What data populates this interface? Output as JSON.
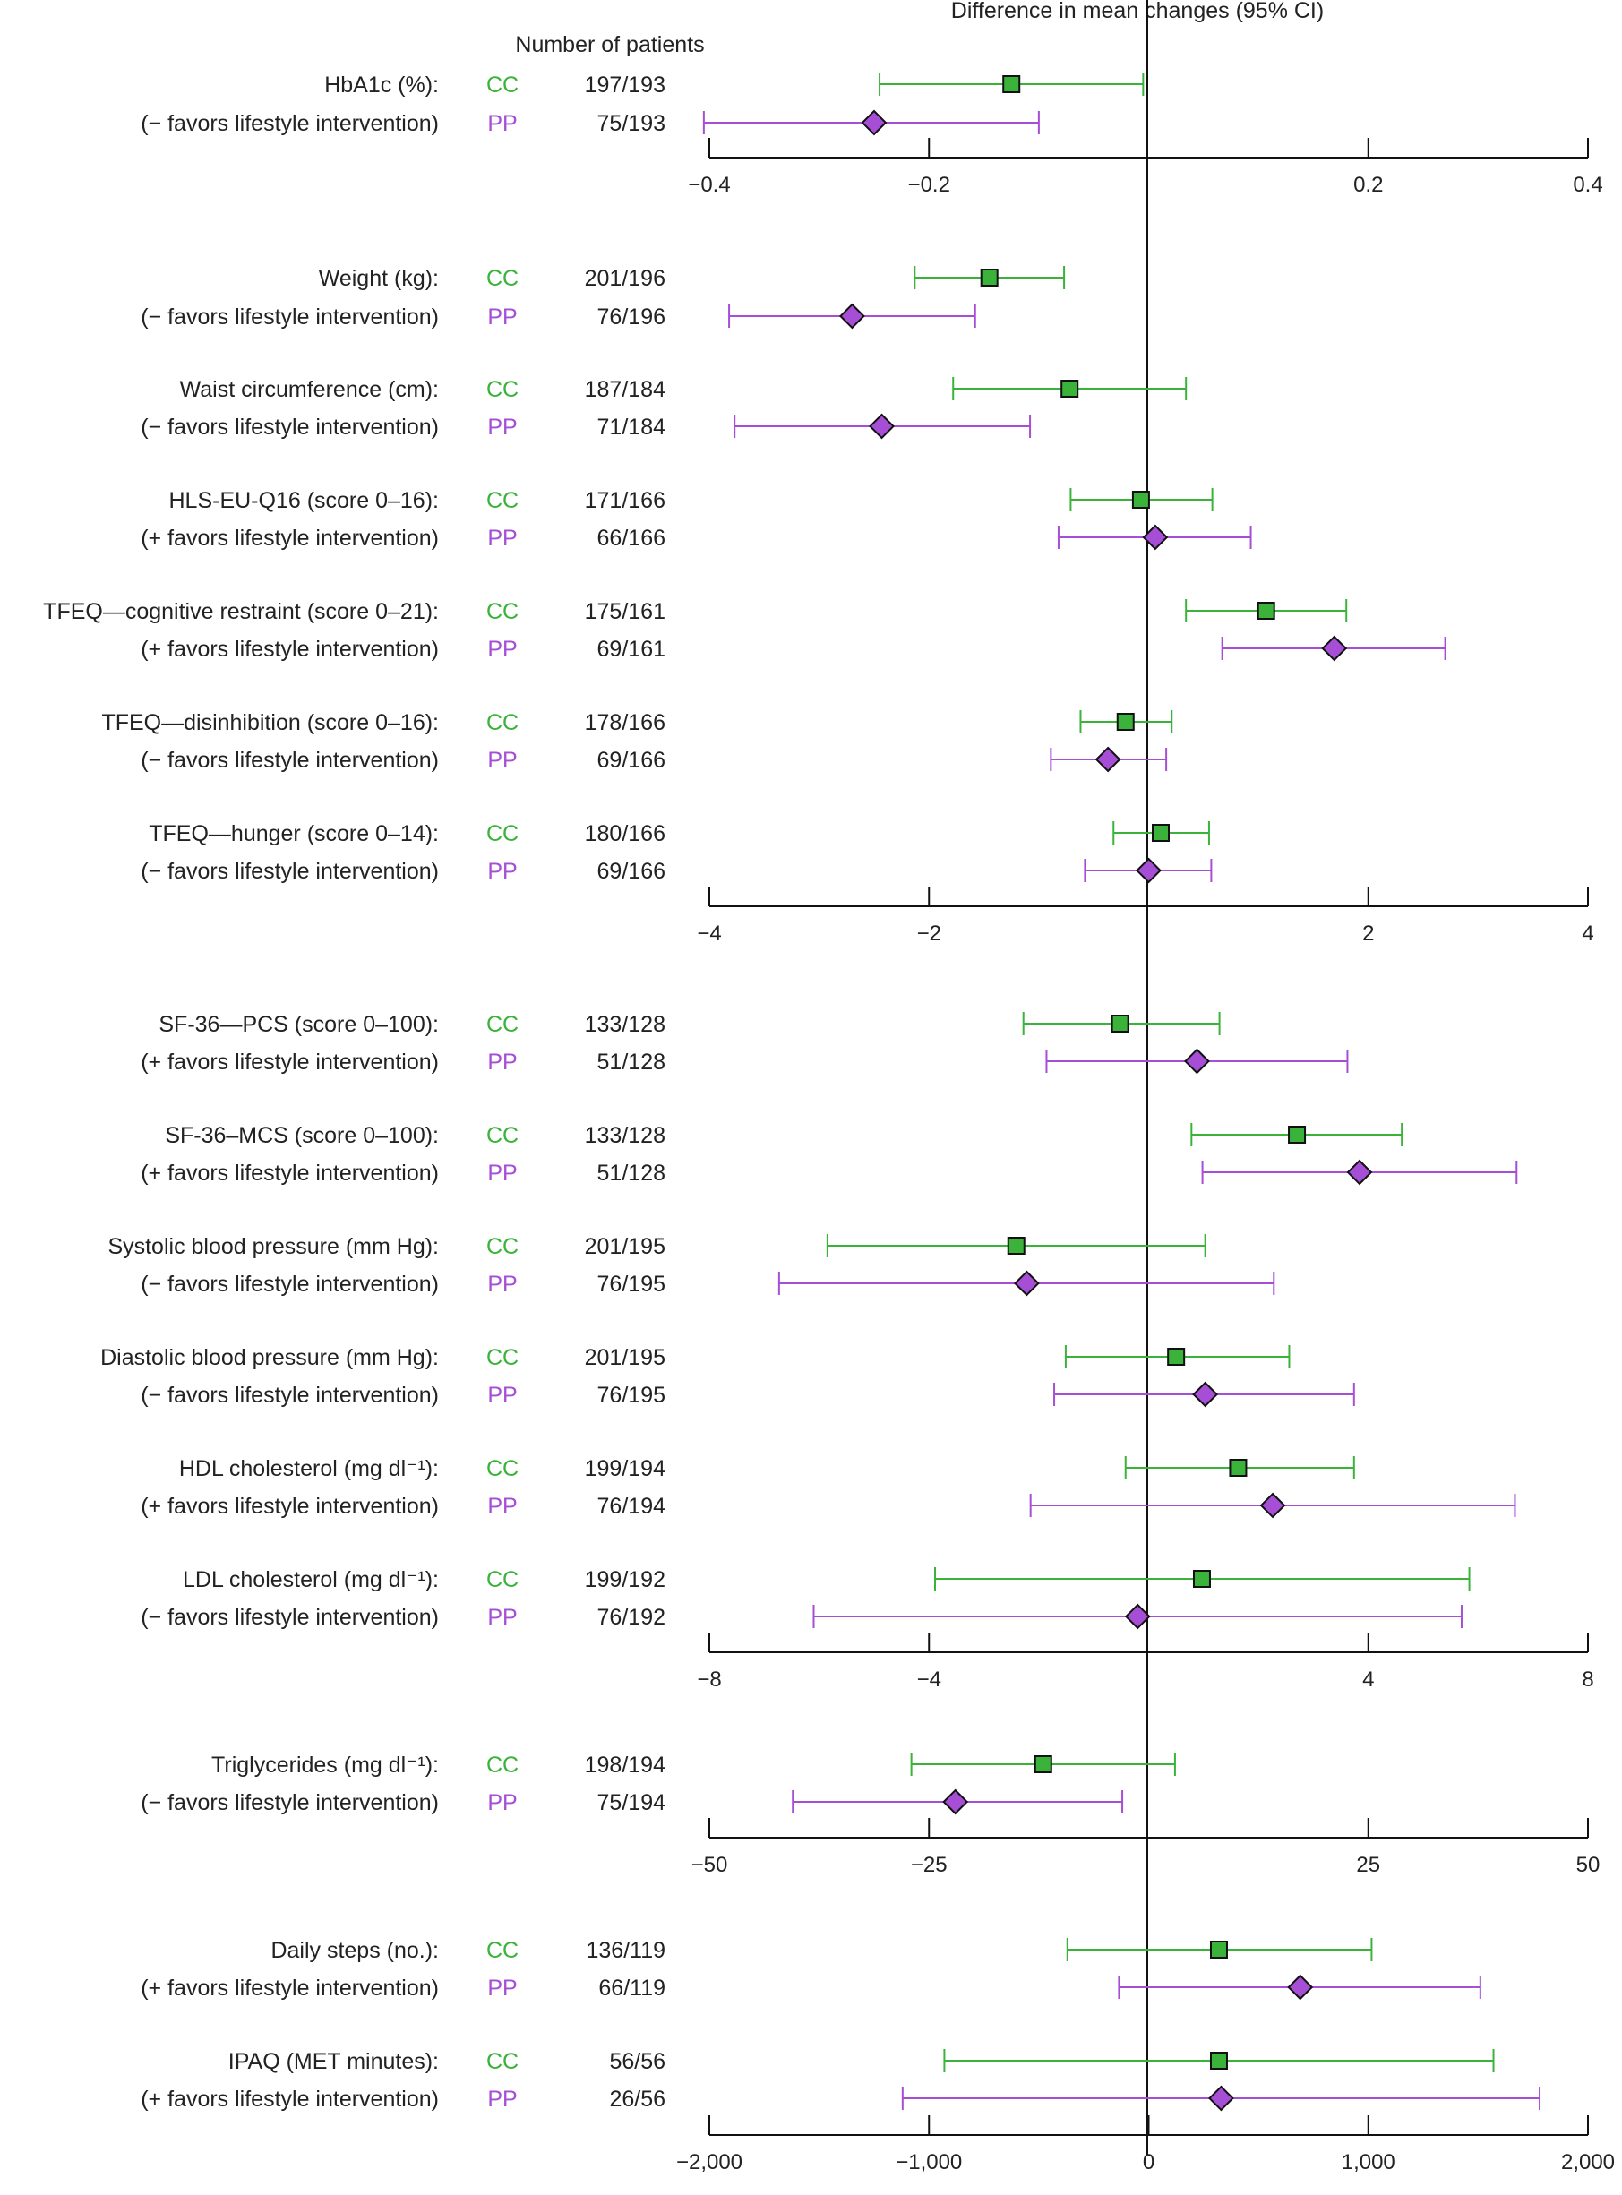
{
  "header": {
    "patients_label": "Number of patients",
    "effect_label": "Difference in mean changes (95% CI)"
  },
  "groups": {
    "cc": {
      "label": "CC",
      "color": "#3bb33b",
      "marker": "square"
    },
    "pp": {
      "label": "PP",
      "color": "#a64fd6",
      "marker": "diamond"
    }
  },
  "chart_data": [
    {
      "type": "forest",
      "xlim": [
        -0.4,
        0.4
      ],
      "ticks": [
        {
          "value": -0.4,
          "label": "−0.4"
        },
        {
          "value": -0.2,
          "label": "−0.2"
        },
        {
          "value": 0.2,
          "label": "0.2"
        },
        {
          "value": 0.4,
          "label": "0.4"
        }
      ],
      "rows": [
        {
          "label": "HbA1c (%):",
          "group": "cc",
          "n": "197/193",
          "estimate": -0.125,
          "lower": -0.245,
          "upper": -0.005
        },
        {
          "label": "(− favors lifestyle intervention)",
          "group": "pp",
          "n": "75/193",
          "estimate": -0.25,
          "lower": -0.405,
          "upper": -0.1
        }
      ]
    },
    {
      "type": "forest",
      "xlim": [
        -4,
        4
      ],
      "ticks": [
        {
          "value": -4,
          "label": "−4"
        },
        {
          "value": -2,
          "label": "−2"
        },
        {
          "value": 2,
          "label": "2"
        },
        {
          "value": 4,
          "label": "4"
        }
      ],
      "rows": [
        {
          "label": "Weight (kg):",
          "group": "cc",
          "n": "201/196",
          "estimate": -1.45,
          "lower": -2.13,
          "upper": -0.77
        },
        {
          "label": "(− favors lifestyle intervention)",
          "group": "pp",
          "n": "76/196",
          "estimate": -2.7,
          "lower": -3.82,
          "upper": -1.58
        },
        {
          "label": "Waist circumference (cm):",
          "group": "cc",
          "n": "187/184",
          "estimate": -0.72,
          "lower": -1.78,
          "upper": 0.34
        },
        {
          "label": "(− favors lifestyle intervention)",
          "group": "pp",
          "n": "71/184",
          "estimate": -2.43,
          "lower": -3.77,
          "upper": -1.08
        },
        {
          "label": "HLS-EU-Q16 (score 0–16):",
          "group": "cc",
          "n": "171/166",
          "estimate": -0.07,
          "lower": -0.71,
          "upper": 0.58
        },
        {
          "label": "(+ favors lifestyle intervention)",
          "group": "pp",
          "n": "66/166",
          "estimate": 0.06,
          "lower": -0.82,
          "upper": 0.93
        },
        {
          "label": "TFEQ—cognitive restraint (score 0–21):",
          "group": "cc",
          "n": "175/161",
          "estimate": 1.07,
          "lower": 0.34,
          "upper": 1.8
        },
        {
          "label": "(+ favors lifestyle intervention)",
          "group": "pp",
          "n": "69/161",
          "estimate": 1.69,
          "lower": 0.67,
          "upper": 2.7
        },
        {
          "label": "TFEQ—disinhibition (score 0–16):",
          "group": "cc",
          "n": "178/166",
          "estimate": -0.21,
          "lower": -0.62,
          "upper": 0.21
        },
        {
          "label": "(− favors lifestyle intervention)",
          "group": "pp",
          "n": "69/166",
          "estimate": -0.37,
          "lower": -0.89,
          "upper": 0.16
        },
        {
          "label": "TFEQ—hunger (score 0–14):",
          "group": "cc",
          "n": "180/166",
          "estimate": 0.11,
          "lower": -0.32,
          "upper": 0.55
        },
        {
          "label": "(− favors lifestyle intervention)",
          "group": "pp",
          "n": "69/166",
          "estimate": 0.0,
          "lower": -0.58,
          "upper": 0.57
        }
      ]
    },
    {
      "type": "forest",
      "xlim": [
        -8,
        8
      ],
      "ticks": [
        {
          "value": -8,
          "label": "−8"
        },
        {
          "value": -4,
          "label": "−4"
        },
        {
          "value": 4,
          "label": "4"
        },
        {
          "value": 8,
          "label": "8"
        }
      ],
      "rows": [
        {
          "label": "SF-36—PCS (score 0–100):",
          "group": "cc",
          "n": "133/128",
          "estimate": -0.52,
          "lower": -2.28,
          "upper": 1.29
        },
        {
          "label": "(+ favors lifestyle intervention)",
          "group": "pp",
          "n": "51/128",
          "estimate": 0.88,
          "lower": -1.86,
          "upper": 3.62
        },
        {
          "label": "SF-36–MCS (score 0–100):",
          "group": "cc",
          "n": "133/128",
          "estimate": 2.7,
          "lower": 0.78,
          "upper": 4.61
        },
        {
          "label": "(+ favors lifestyle intervention)",
          "group": "pp",
          "n": "51/128",
          "estimate": 3.84,
          "lower": 0.98,
          "upper": 6.7
        },
        {
          "label": "Systolic blood pressure (mm Hg):",
          "group": "cc",
          "n": "201/195",
          "estimate": -2.41,
          "lower": -5.85,
          "upper": 1.03
        },
        {
          "label": "(− favors lifestyle intervention)",
          "group": "pp",
          "n": "76/195",
          "estimate": -2.22,
          "lower": -6.73,
          "upper": 2.28
        },
        {
          "label": "Diastolic blood pressure (mm Hg):",
          "group": "cc",
          "n": "201/195",
          "estimate": 0.5,
          "lower": -1.51,
          "upper": 2.56
        },
        {
          "label": "(− favors lifestyle intervention)",
          "group": "pp",
          "n": "76/195",
          "estimate": 1.03,
          "lower": -1.72,
          "upper": 3.74
        },
        {
          "label": "HDL cholesterol (mg dl⁻¹):",
          "group": "cc",
          "n": "199/194",
          "estimate": 1.63,
          "lower": -0.42,
          "upper": 3.74
        },
        {
          "label": "(+ favors lifestyle intervention)",
          "group": "pp",
          "n": "76/194",
          "estimate": 2.26,
          "lower": -2.15,
          "upper": 6.67
        },
        {
          "label": "LDL cholesterol (mg dl⁻¹):",
          "group": "cc",
          "n": "199/192",
          "estimate": 0.97,
          "lower": -3.89,
          "upper": 5.84
        },
        {
          "label": "(− favors lifestyle intervention)",
          "group": "pp",
          "n": "76/192",
          "estimate": -0.2,
          "lower": -6.1,
          "upper": 5.7
        }
      ]
    },
    {
      "type": "forest",
      "xlim": [
        -50,
        50
      ],
      "ticks": [
        {
          "value": -50,
          "label": "−50"
        },
        {
          "value": -25,
          "label": "−25"
        },
        {
          "value": 25,
          "label": "25"
        },
        {
          "value": 50,
          "label": "50"
        }
      ],
      "rows": [
        {
          "label": "Triglycerides (mg dl⁻¹):",
          "group": "cc",
          "n": "198/194",
          "estimate": -12.0,
          "lower": -27.0,
          "upper": 3.0
        },
        {
          "label": "(− favors lifestyle intervention)",
          "group": "pp",
          "n": "75/194",
          "estimate": -22.0,
          "lower": -40.5,
          "upper": -3.0
        }
      ]
    },
    {
      "type": "forest",
      "xlim": [
        -2000,
        2000
      ],
      "ticks": [
        {
          "value": -2000,
          "label": "−2,000"
        },
        {
          "value": -1000,
          "label": "−1,000"
        },
        {
          "value": 0,
          "label": "0"
        },
        {
          "value": 1000,
          "label": "1,000"
        },
        {
          "value": 2000,
          "label": "2,000"
        }
      ],
      "rows": [
        {
          "label": "Daily steps (no.):",
          "group": "cc",
          "n": "136/119",
          "estimate": 320,
          "lower": -370,
          "upper": 1015
        },
        {
          "label": "(+ favors lifestyle intervention)",
          "group": "pp",
          "n": "66/119",
          "estimate": 690,
          "lower": -135,
          "upper": 1510
        },
        {
          "label": "IPAQ (MET minutes):",
          "group": "cc",
          "n": "56/56",
          "estimate": 320,
          "lower": -930,
          "upper": 1570
        },
        {
          "label": "(+ favors lifestyle intervention)",
          "group": "pp",
          "n": "26/56",
          "estimate": 330,
          "lower": -1120,
          "upper": 1780
        }
      ]
    }
  ]
}
